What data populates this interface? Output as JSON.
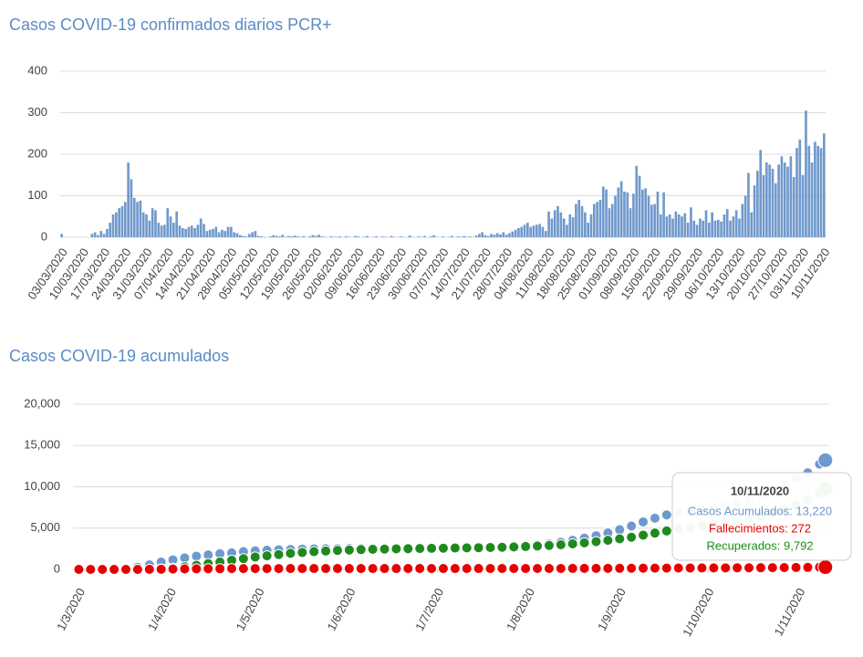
{
  "chart_data": [
    {
      "type": "bar",
      "title": "Casos COVID-19 confirmados diarios PCR+",
      "color": "#7099cc",
      "grid": true,
      "ylim": [
        0,
        400
      ],
      "yticks": [
        0,
        100,
        200,
        300,
        400
      ],
      "categories": [
        "03/03/2020",
        null,
        null,
        null,
        null,
        null,
        null,
        "10/03/2020",
        null,
        null,
        null,
        null,
        null,
        null,
        "17/03/2020",
        null,
        null,
        null,
        null,
        null,
        null,
        "24/03/2020",
        null,
        null,
        null,
        null,
        null,
        null,
        "31/03/2020",
        null,
        null,
        null,
        null,
        null,
        null,
        "07/04/2020",
        null,
        null,
        null,
        null,
        null,
        null,
        "14/04/2020",
        null,
        null,
        null,
        null,
        null,
        null,
        "21/04/2020",
        null,
        null,
        null,
        null,
        null,
        null,
        "28/04/2020",
        null,
        null,
        null,
        null,
        null,
        null,
        "05/05/2020",
        null,
        null,
        null,
        null,
        null,
        null,
        "12/05/2020",
        null,
        null,
        null,
        null,
        null,
        null,
        "19/05/2020",
        null,
        null,
        null,
        null,
        null,
        null,
        "26/05/2020",
        null,
        null,
        null,
        null,
        null,
        null,
        "02/06/2020",
        null,
        null,
        null,
        null,
        null,
        null,
        "09/06/2020",
        null,
        null,
        null,
        null,
        null,
        null,
        "16/06/2020",
        null,
        null,
        null,
        null,
        null,
        null,
        "23/06/2020",
        null,
        null,
        null,
        null,
        null,
        null,
        "30/06/2020",
        null,
        null,
        null,
        null,
        null,
        null,
        "07/07/2020",
        null,
        null,
        null,
        null,
        null,
        null,
        "14/07/2020",
        null,
        null,
        null,
        null,
        null,
        null,
        "21/07/2020",
        null,
        null,
        null,
        null,
        null,
        null,
        "28/07/2020",
        null,
        null,
        null,
        null,
        null,
        null,
        "04/08/2020",
        null,
        null,
        null,
        null,
        null,
        null,
        "11/08/2020",
        null,
        null,
        null,
        null,
        null,
        null,
        "18/08/2020",
        null,
        null,
        null,
        null,
        null,
        null,
        "25/08/2020",
        null,
        null,
        null,
        null,
        null,
        null,
        "01/09/2020",
        null,
        null,
        null,
        null,
        null,
        null,
        "08/09/2020",
        null,
        null,
        null,
        null,
        null,
        null,
        "15/09/2020",
        null,
        null,
        null,
        null,
        null,
        null,
        "22/09/2020",
        null,
        null,
        null,
        null,
        null,
        null,
        "29/09/2020",
        null,
        null,
        null,
        null,
        null,
        null,
        "06/10/2020",
        null,
        null,
        null,
        null,
        null,
        null,
        "13/10/2020",
        null,
        null,
        null,
        null,
        null,
        null,
        "20/10/2020",
        null,
        null,
        null,
        null,
        null,
        null,
        "27/10/2020",
        null,
        null,
        null,
        null,
        null,
        null,
        "03/11/2020",
        null,
        null,
        null,
        null,
        null,
        null,
        "10/11/2020"
      ],
      "values": [
        8,
        0,
        0,
        0,
        0,
        0,
        0,
        0,
        0,
        0,
        8,
        12,
        5,
        15,
        8,
        20,
        35,
        55,
        60,
        70,
        75,
        85,
        180,
        140,
        95,
        85,
        88,
        60,
        55,
        40,
        70,
        65,
        35,
        28,
        30,
        70,
        50,
        35,
        62,
        28,
        22,
        20,
        25,
        28,
        22,
        30,
        45,
        32,
        15,
        18,
        20,
        25,
        12,
        18,
        15,
        25,
        25,
        12,
        10,
        5,
        3,
        2,
        8,
        12,
        15,
        3,
        2,
        1,
        0,
        2,
        5,
        3,
        2,
        6,
        1,
        3,
        2,
        4,
        2,
        1,
        3,
        0,
        2,
        5,
        3,
        6,
        2,
        1,
        0,
        2,
        1,
        1,
        2,
        0,
        2,
        1,
        0,
        3,
        2,
        0,
        1,
        3,
        0,
        1,
        2,
        0,
        2,
        1,
        0,
        3,
        1,
        0,
        2,
        1,
        0,
        4,
        1,
        0,
        2,
        1,
        3,
        0,
        2,
        5,
        1,
        0,
        2,
        0,
        1,
        3,
        0,
        2,
        1,
        3,
        1,
        2,
        0,
        4,
        8,
        12,
        5,
        3,
        8,
        6,
        10,
        7,
        12,
        6,
        10,
        14,
        18,
        22,
        25,
        30,
        35,
        25,
        28,
        30,
        32,
        25,
        15,
        62,
        45,
        65,
        75,
        60,
        45,
        30,
        55,
        48,
        80,
        90,
        75,
        60,
        35,
        55,
        80,
        85,
        90,
        122,
        115,
        70,
        80,
        100,
        120,
        135,
        110,
        108,
        70,
        105,
        172,
        148,
        115,
        118,
        100,
        78,
        80,
        110,
        55,
        108,
        50,
        55,
        45,
        62,
        55,
        50,
        58,
        35,
        72,
        40,
        30,
        45,
        40,
        65,
        35,
        60,
        40,
        42,
        38,
        55,
        68,
        40,
        50,
        65,
        45,
        80,
        100,
        155,
        60,
        125,
        160,
        210,
        150,
        180,
        175,
        165,
        130,
        175,
        195,
        180,
        170,
        195,
        145,
        215,
        235,
        150,
        305,
        220,
        180,
        230,
        220,
        215,
        250
      ]
    },
    {
      "type": "line",
      "title": "Casos COVID-19 acumulados",
      "grid": true,
      "ylim": [
        0,
        20000
      ],
      "yticks": [
        0,
        {
          "value": 5000,
          "label": "5,000"
        },
        {
          "value": 10000,
          "label": "10,000"
        },
        {
          "value": 15000,
          "label": "15,000"
        },
        {
          "value": 20000,
          "label": "20,000"
        }
      ],
      "xlim": [
        "28/2/2020",
        "11/11/2020"
      ],
      "xticks": [
        "1/3/2020",
        "1/4/2020",
        "1/5/2020",
        "1/6/2020",
        "1/7/2020",
        "1/8/2020",
        "1/9/2020",
        "1/10/2020",
        "1/11/2020"
      ],
      "x": [
        "1/3/2020",
        "5/3/2020",
        "9/3/2020",
        "13/3/2020",
        "17/3/2020",
        "21/3/2020",
        "25/3/2020",
        "29/3/2020",
        "2/4/2020",
        "6/4/2020",
        "10/4/2020",
        "14/4/2020",
        "18/4/2020",
        "22/4/2020",
        "26/4/2020",
        "30/4/2020",
        "4/5/2020",
        "8/5/2020",
        "12/5/2020",
        "16/5/2020",
        "20/5/2020",
        "24/5/2020",
        "28/5/2020",
        "1/6/2020",
        "5/6/2020",
        "9/6/2020",
        "13/6/2020",
        "17/6/2020",
        "21/6/2020",
        "25/6/2020",
        "29/6/2020",
        "3/7/2020",
        "7/7/2020",
        "11/7/2020",
        "15/7/2020",
        "19/7/2020",
        "23/7/2020",
        "27/7/2020",
        "31/7/2020",
        "4/8/2020",
        "8/8/2020",
        "12/8/2020",
        "16/8/2020",
        "20/8/2020",
        "24/8/2020",
        "28/8/2020",
        "1/9/2020",
        "5/9/2020",
        "9/9/2020",
        "13/9/2020",
        "17/9/2020",
        "21/9/2020",
        "25/9/2020",
        "29/9/2020",
        "3/10/2020",
        "7/10/2020",
        "11/10/2020",
        "15/10/2020",
        "19/10/2020",
        "23/10/2020",
        "27/10/2020",
        "31/10/2020",
        "4/11/2020",
        "8/11/2020",
        "10/11/2020"
      ],
      "series": [
        {
          "name": "Casos Acumulados",
          "color": "#6e99cf",
          "values": [
            0,
            1,
            3,
            20,
            60,
            250,
            550,
            900,
            1150,
            1400,
            1600,
            1750,
            1900,
            2000,
            2150,
            2250,
            2320,
            2380,
            2420,
            2450,
            2480,
            2500,
            2520,
            2540,
            2560,
            2570,
            2580,
            2590,
            2600,
            2610,
            2620,
            2640,
            2650,
            2660,
            2670,
            2690,
            2720,
            2760,
            2830,
            2950,
            3080,
            3290,
            3520,
            3780,
            4080,
            4420,
            4800,
            5250,
            5750,
            6200,
            6600,
            6850,
            7050,
            7250,
            7450,
            7680,
            8000,
            8450,
            9050,
            9700,
            10350,
            11000,
            11700,
            12750,
            13220
          ]
        },
        {
          "name": "Recuperados",
          "color": "#1e8a1e",
          "values": [
            0,
            0,
            0,
            0,
            0,
            0,
            0,
            50,
            150,
            300,
            500,
            700,
            900,
            1100,
            1300,
            1500,
            1650,
            1800,
            1950,
            2050,
            2150,
            2230,
            2300,
            2350,
            2400,
            2430,
            2460,
            2490,
            2510,
            2530,
            2550,
            2570,
            2590,
            2610,
            2630,
            2650,
            2680,
            2720,
            2770,
            2830,
            2900,
            2990,
            3100,
            3220,
            3360,
            3520,
            3700,
            3900,
            4150,
            4400,
            4650,
            4900,
            5100,
            5300,
            5500,
            5650,
            5850,
            6100,
            6450,
            6850,
            7300,
            7800,
            8400,
            9200,
            9792
          ]
        },
        {
          "name": "Fallecimientos",
          "color": "#e60000",
          "values": [
            0,
            0,
            0,
            0,
            0,
            2,
            8,
            20,
            40,
            55,
            70,
            80,
            88,
            94,
            98,
            100,
            102,
            103,
            104,
            104,
            105,
            105,
            105,
            105,
            105,
            105,
            105,
            106,
            106,
            106,
            106,
            106,
            107,
            107,
            107,
            107,
            108,
            108,
            109,
            110,
            112,
            115,
            118,
            122,
            126,
            130,
            135,
            140,
            146,
            152,
            158,
            164,
            170,
            175,
            180,
            185,
            190,
            196,
            203,
            212,
            222,
            233,
            245,
            260,
            272
          ]
        }
      ],
      "tooltip": {
        "title": "10/11/2020",
        "lines": [
          {
            "text": "Casos Acumulados: 13,220",
            "color": "#6e99cf"
          },
          {
            "text": "Fallecimientos: 272",
            "color": "#e60000"
          },
          {
            "text": "Recuperados: 9,792",
            "color": "#1e8a1e"
          }
        ]
      }
    }
  ]
}
